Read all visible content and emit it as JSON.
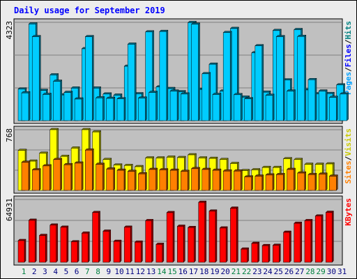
{
  "chart_data": {
    "type": "bar",
    "title": "Daily usage for September 2019",
    "days": [
      "1",
      "2",
      "3",
      "4",
      "5",
      "6",
      "7",
      "8",
      "9",
      "10",
      "11",
      "12",
      "13",
      "14",
      "15",
      "16",
      "17",
      "18",
      "19",
      "20",
      "21",
      "22",
      "23",
      "24",
      "25",
      "26",
      "27",
      "28",
      "29",
      "30",
      "31"
    ],
    "weekend_days": [
      "1",
      "7",
      "8",
      "14",
      "15",
      "21",
      "22",
      "28",
      "29"
    ],
    "panels": [
      {
        "id": "traffic",
        "max_label": "4323",
        "max": 4323,
        "right_labels": [
          "Pages",
          "/",
          "Files",
          "/",
          "Hits"
        ],
        "series": [
          {
            "name": "Hits",
            "color": "#00ccff",
            "values": [
              1390,
              4250,
              1330,
              2010,
              1130,
              1430,
              3160,
              1430,
              1170,
              1120,
              2390,
              1180,
              3900,
              1480,
              1410,
              1270,
              4310,
              1370,
              2480,
              1300,
              4050,
              1030,
              2980,
              1250,
              3960,
              1790,
              4000,
              1350,
              1180,
              1190,
              1570
            ]
          },
          {
            "name": "Files",
            "color": "#00ccff",
            "values": [
              1220,
              3690,
              1150,
              1730,
              1240,
              950,
              3690,
              1000,
              980,
              960,
              3360,
              990,
              1240,
              3920,
              1300,
              1170,
              4240,
              2060,
              1150,
              3870,
              1140,
              960,
              3290,
              1110,
              3690,
              1300,
              3700,
              1800,
              1300,
              1020,
              1170
            ]
          },
          {
            "name": "Pages",
            "color": "#2050cc",
            "values": [
              0,
              0,
              0,
              0,
              0,
              0,
              0,
              0,
              0,
              0,
              0,
              0,
              0,
              0,
              0,
              0,
              0,
              0,
              0,
              0,
              0,
              0,
              0,
              0,
              0,
              0,
              0,
              0,
              0,
              0,
              0
            ]
          }
        ]
      },
      {
        "id": "visits",
        "max_label": "768",
        "max": 768,
        "right_labels": [
          "Sites",
          "/",
          "Visits"
        ],
        "series": [
          {
            "name": "Visits",
            "color": "#ffff00",
            "values": [
              505,
              370,
              470,
              768,
              430,
              535,
              768,
              740,
              390,
              320,
              315,
              300,
              410,
              410,
              420,
              415,
              450,
              410,
              405,
              390,
              340,
              250,
              260,
              290,
              290,
              400,
              390,
              330,
              330,
              335,
              0
            ]
          },
          {
            "name": "Sites",
            "color": "#ff8000",
            "values": [
              355,
              260,
              310,
              390,
              325,
              345,
              510,
              330,
              270,
              255,
              240,
              210,
              265,
              260,
              255,
              240,
              275,
              265,
              255,
              245,
              245,
              170,
              180,
              195,
              200,
              265,
              220,
              200,
              205,
              180,
              0
            ]
          }
        ]
      },
      {
        "id": "kbytes",
        "max_label": "64931",
        "max": 64931,
        "right_labels": [
          "KBytes"
        ],
        "series": [
          {
            "name": "KBytes",
            "color": "#ff0000",
            "values": [
              22400,
              43400,
              27700,
              38400,
              36200,
              21100,
              30100,
              51400,
              32100,
              21600,
              36200,
              20800,
              43000,
              18500,
              51300,
              37200,
              35900,
              62000,
              52900,
              35400,
              55900,
              13600,
              19500,
              17200,
              17500,
              31000,
              40300,
              43000,
              47800,
              51600,
              0
            ]
          }
        ]
      }
    ]
  },
  "colors": {
    "background": "#ececec",
    "plot": "#c0c0c0",
    "title": "#0000ff",
    "weekday": "#000080",
    "weekend": "#008040",
    "pages": "#00a0ff",
    "files": "#0000ff",
    "hits": "#008080",
    "sites": "#ff8000",
    "visits": "#c8c800",
    "kbytes": "#ff0000"
  }
}
